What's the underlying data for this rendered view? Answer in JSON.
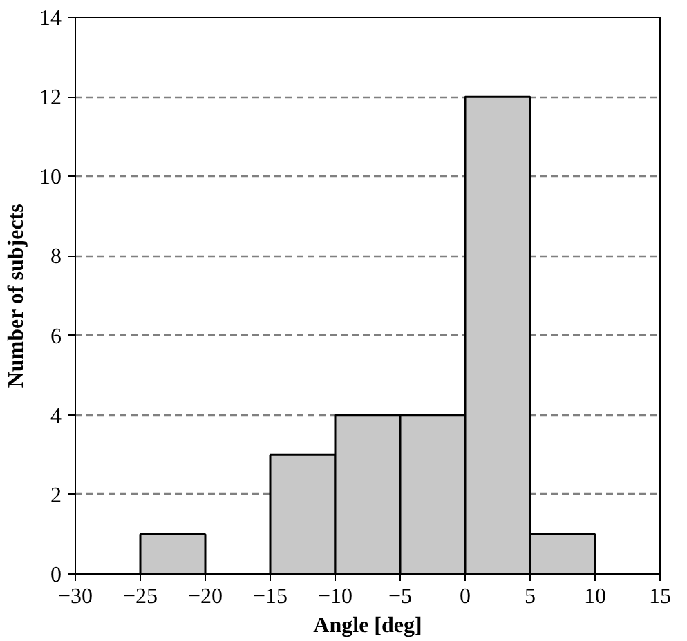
{
  "chart_data": {
    "type": "histogram",
    "xlabel": "Angle [deg]",
    "ylabel": "Number of subjects",
    "bins": [
      -25,
      -20,
      -15,
      -10,
      -5,
      0,
      5,
      10
    ],
    "values": [
      1,
      0,
      3,
      4,
      4,
      12,
      1
    ],
    "color": "#c8c8c8",
    "xlim": [
      -30,
      15
    ],
    "xticks": [
      -30,
      -25,
      -20,
      -15,
      -10,
      -5,
      0,
      5,
      10,
      15
    ],
    "ylim": [
      0,
      14
    ],
    "yticks": [
      0,
      2,
      4,
      6,
      8,
      10,
      12,
      14
    ],
    "grid": "y"
  }
}
